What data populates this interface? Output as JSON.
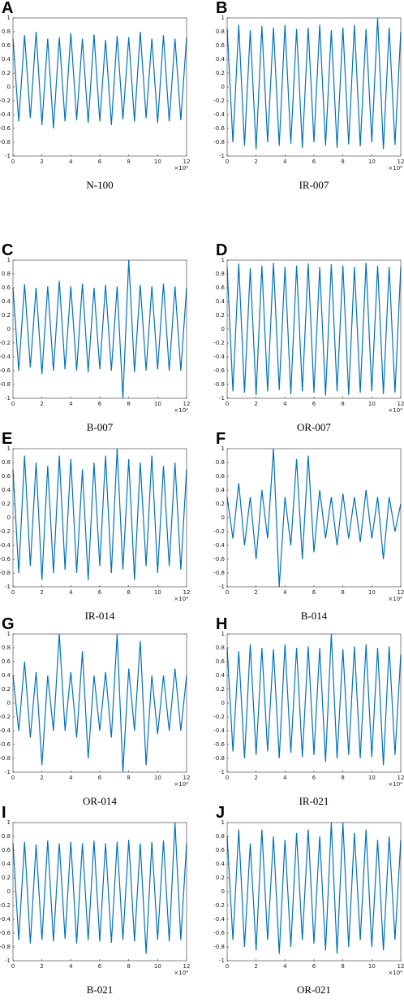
{
  "chart_data": [
    {
      "type": "line",
      "label": "A",
      "caption": "N-100",
      "color": "#0072bd",
      "x_scale_label": "×10⁴",
      "xlim": [
        0,
        12
      ],
      "ylim": [
        -1,
        1
      ],
      "xticks": [
        0,
        2,
        4,
        6,
        8,
        10,
        12
      ],
      "yticks": [
        -1,
        -0.8,
        -0.6,
        -0.4,
        -0.2,
        0,
        0.2,
        0.4,
        0.6,
        0.8,
        1
      ],
      "x": [
        0,
        0.4,
        0.8,
        1.2,
        1.6,
        2,
        2.4,
        2.8,
        3.2,
        3.6,
        4,
        4.4,
        4.8,
        5.2,
        5.6,
        6,
        6.4,
        6.8,
        7.2,
        7.6,
        8,
        8.4,
        8.8,
        9.2,
        9.6,
        10,
        10.4,
        10.8,
        11.2,
        11.6,
        12
      ],
      "values": [
        0.7,
        -0.5,
        0.75,
        -0.45,
        0.8,
        -0.55,
        0.7,
        -0.6,
        0.72,
        -0.5,
        0.78,
        -0.48,
        0.7,
        -0.52,
        0.76,
        -0.5,
        0.68,
        -0.55,
        0.74,
        -0.47,
        0.72,
        -0.5,
        0.8,
        -0.45,
        0.7,
        -0.52,
        0.75,
        -0.5,
        0.7,
        -0.48,
        0.72
      ]
    },
    {
      "type": "line",
      "label": "B",
      "caption": "IR-007",
      "color": "#0072bd",
      "x_scale_label": "×10⁴",
      "xlim": [
        0,
        12
      ],
      "ylim": [
        -1,
        1
      ],
      "xticks": [
        0,
        2,
        4,
        6,
        8,
        10,
        12
      ],
      "yticks": [
        -1,
        -0.8,
        -0.6,
        -0.4,
        -0.2,
        0,
        0.2,
        0.4,
        0.6,
        0.8,
        1
      ],
      "x": [
        0,
        0.4,
        0.8,
        1.2,
        1.6,
        2,
        2.4,
        2.8,
        3.2,
        3.6,
        4,
        4.4,
        4.8,
        5.2,
        5.6,
        6,
        6.4,
        6.8,
        7.2,
        7.6,
        8,
        8.4,
        8.8,
        9.2,
        9.6,
        10,
        10.4,
        10.8,
        11.2,
        11.6,
        12
      ],
      "values": [
        0.85,
        -0.8,
        0.9,
        -0.85,
        0.82,
        -0.9,
        0.88,
        -0.8,
        0.86,
        -0.85,
        0.9,
        -0.82,
        0.84,
        -0.88,
        0.86,
        -0.8,
        0.9,
        -0.85,
        0.82,
        -0.88,
        0.86,
        -0.83,
        0.9,
        -0.86,
        0.84,
        -0.8,
        1,
        -0.9,
        0.86,
        -0.84,
        0.8
      ]
    },
    {
      "type": "line",
      "label": "C",
      "caption": "B-007",
      "color": "#0072bd",
      "x_scale_label": "×10⁴",
      "xlim": [
        0,
        12
      ],
      "ylim": [
        -1,
        1
      ],
      "xticks": [
        0,
        2,
        4,
        6,
        8,
        10,
        12
      ],
      "yticks": [
        -1,
        -0.8,
        -0.6,
        -0.4,
        -0.2,
        0,
        0.2,
        0.4,
        0.6,
        0.8,
        1
      ],
      "x": [
        0,
        0.4,
        0.8,
        1.2,
        1.6,
        2,
        2.4,
        2.8,
        3.2,
        3.6,
        4,
        4.4,
        4.8,
        5.2,
        5.6,
        6,
        6.4,
        6.8,
        7.2,
        7.6,
        8,
        8.4,
        8.8,
        9.2,
        9.6,
        10,
        10.4,
        10.8,
        11.2,
        11.6,
        12
      ],
      "values": [
        0.6,
        -0.6,
        0.65,
        -0.55,
        0.6,
        -0.65,
        0.62,
        -0.6,
        0.7,
        -0.58,
        0.62,
        -0.6,
        0.66,
        -0.62,
        0.6,
        -0.58,
        0.64,
        -0.6,
        0.62,
        -1,
        1,
        -0.62,
        0.64,
        -0.6,
        0.62,
        -0.58,
        0.66,
        -0.6,
        0.62,
        -0.6,
        0.6
      ]
    },
    {
      "type": "line",
      "label": "D",
      "caption": "OR-007",
      "color": "#0072bd",
      "x_scale_label": "×10⁴",
      "xlim": [
        0,
        12
      ],
      "ylim": [
        -1,
        1
      ],
      "xticks": [
        0,
        2,
        4,
        6,
        8,
        10,
        12
      ],
      "yticks": [
        -1,
        -0.8,
        -0.6,
        -0.4,
        -0.2,
        0,
        0.2,
        0.4,
        0.6,
        0.8,
        1
      ],
      "x": [
        0,
        0.4,
        0.8,
        1.2,
        1.6,
        2,
        2.4,
        2.8,
        3.2,
        3.6,
        4,
        4.4,
        4.8,
        5.2,
        5.6,
        6,
        6.4,
        6.8,
        7.2,
        7.6,
        8,
        8.4,
        8.8,
        9.2,
        9.6,
        10,
        10.4,
        10.8,
        11.2,
        11.6,
        12
      ],
      "values": [
        0.9,
        -0.9,
        0.95,
        -0.92,
        0.88,
        -0.95,
        0.92,
        -0.9,
        0.96,
        -0.88,
        0.9,
        -0.94,
        0.92,
        -0.9,
        0.95,
        -0.92,
        0.9,
        -0.96,
        0.94,
        -0.9,
        0.92,
        -0.95,
        0.9,
        -0.92,
        0.96,
        -0.9,
        0.92,
        -0.94,
        0.9,
        -0.92,
        0.9
      ]
    },
    {
      "type": "line",
      "label": "E",
      "caption": "IR-014",
      "color": "#0072bd",
      "x_scale_label": "×10⁴",
      "xlim": [
        0,
        12
      ],
      "ylim": [
        -1,
        1
      ],
      "xticks": [
        0,
        2,
        4,
        6,
        8,
        10,
        12
      ],
      "yticks": [
        -1,
        -0.8,
        -0.6,
        -0.4,
        -0.2,
        0,
        0.2,
        0.4,
        0.6,
        0.8,
        1
      ],
      "x": [
        0,
        0.4,
        0.8,
        1.2,
        1.6,
        2,
        2.4,
        2.8,
        3.2,
        3.6,
        4,
        4.4,
        4.8,
        5.2,
        5.6,
        6,
        6.4,
        6.8,
        7.2,
        7.6,
        8,
        8.4,
        8.8,
        9.2,
        9.6,
        10,
        10.4,
        10.8,
        11.2,
        11.6,
        12
      ],
      "values": [
        0.7,
        -0.8,
        0.9,
        -0.7,
        0.8,
        -0.9,
        0.75,
        -0.8,
        0.9,
        -0.75,
        0.85,
        -0.8,
        0.7,
        -0.9,
        0.8,
        -0.7,
        0.9,
        -0.8,
        1,
        -0.75,
        0.85,
        -0.9,
        0.8,
        -0.7,
        0.9,
        -0.8,
        0.75,
        -0.7,
        0.8,
        -0.75,
        0.7
      ]
    },
    {
      "type": "line",
      "label": "F",
      "caption": "B-014",
      "color": "#0072bd",
      "x_scale_label": "×10⁴",
      "xlim": [
        0,
        12
      ],
      "ylim": [
        -1,
        1
      ],
      "xticks": [
        0,
        2,
        4,
        6,
        8,
        10,
        12
      ],
      "yticks": [
        -1,
        -0.8,
        -0.6,
        -0.4,
        -0.2,
        0,
        0.2,
        0.4,
        0.6,
        0.8,
        1
      ],
      "x": [
        0,
        0.4,
        0.8,
        1.2,
        1.6,
        2,
        2.4,
        2.8,
        3.2,
        3.6,
        4,
        4.4,
        4.8,
        5.2,
        5.6,
        6,
        6.4,
        6.8,
        7.2,
        7.6,
        8,
        8.4,
        8.8,
        9.2,
        9.6,
        10,
        10.4,
        10.8,
        11.2,
        11.6,
        12
      ],
      "values": [
        0.3,
        -0.3,
        0.5,
        -0.4,
        0.3,
        -0.6,
        0.4,
        -0.3,
        1,
        -1,
        0.3,
        -0.4,
        0.85,
        -0.6,
        0.9,
        -0.5,
        0.4,
        -0.3,
        0.3,
        -0.4,
        0.35,
        -0.3,
        0.3,
        -0.35,
        0.4,
        -0.3,
        0.3,
        -0.6,
        0.3,
        -0.2,
        0.2
      ]
    },
    {
      "type": "line",
      "label": "G",
      "caption": "OR-014",
      "color": "#0072bd",
      "x_scale_label": "×10⁴",
      "xlim": [
        0,
        12
      ],
      "ylim": [
        -1,
        1
      ],
      "xticks": [
        0,
        2,
        4,
        6,
        8,
        10,
        12
      ],
      "yticks": [
        -1,
        -0.8,
        -0.6,
        -0.4,
        -0.2,
        0,
        0.2,
        0.4,
        0.6,
        0.8,
        1
      ],
      "x": [
        0,
        0.4,
        0.8,
        1.2,
        1.6,
        2,
        2.4,
        2.8,
        3.2,
        3.6,
        4,
        4.4,
        4.8,
        5.2,
        5.6,
        6,
        6.4,
        6.8,
        7.2,
        7.6,
        8,
        8.4,
        8.8,
        9.2,
        9.6,
        10,
        10.4,
        10.8,
        11.2,
        11.6,
        12
      ],
      "values": [
        0.4,
        -0.4,
        0.6,
        -0.5,
        0.45,
        -0.9,
        0.4,
        -0.4,
        1,
        -0.4,
        0.45,
        -0.5,
        0.75,
        -0.8,
        0.4,
        -0.4,
        0.45,
        -0.5,
        1,
        -1,
        0.5,
        -0.4,
        0.9,
        -0.9,
        0.4,
        -0.45,
        0.4,
        -0.4,
        0.5,
        -0.4,
        0.4
      ]
    },
    {
      "type": "line",
      "label": "H",
      "caption": "IR-021",
      "color": "#0072bd",
      "x_scale_label": "×10⁴",
      "xlim": [
        0,
        12
      ],
      "ylim": [
        -1,
        1
      ],
      "xticks": [
        0,
        2,
        4,
        6,
        8,
        10,
        12
      ],
      "yticks": [
        -1,
        -0.8,
        -0.6,
        -0.4,
        -0.2,
        0,
        0.2,
        0.4,
        0.6,
        0.8,
        1
      ],
      "x": [
        0,
        0.4,
        0.8,
        1.2,
        1.6,
        2,
        2.4,
        2.8,
        3.2,
        3.6,
        4,
        4.4,
        4.8,
        5.2,
        5.6,
        6,
        6.4,
        6.8,
        7.2,
        7.6,
        8,
        8.4,
        8.8,
        9.2,
        9.6,
        10,
        10.4,
        10.8,
        11.2,
        11.6,
        12
      ],
      "values": [
        0.8,
        -0.7,
        0.75,
        -0.8,
        0.85,
        -0.75,
        0.8,
        -0.7,
        0.78,
        -0.8,
        0.85,
        -0.72,
        0.8,
        -0.78,
        0.82,
        -0.75,
        0.8,
        -0.85,
        1,
        -0.8,
        0.78,
        -0.75,
        0.82,
        -0.8,
        0.85,
        -0.78,
        0.8,
        -0.9,
        0.82,
        -0.75,
        0.7
      ]
    },
    {
      "type": "line",
      "label": "I",
      "caption": "B-021",
      "color": "#0072bd",
      "x_scale_label": "×10⁴",
      "xlim": [
        0,
        12
      ],
      "ylim": [
        -1,
        1
      ],
      "xticks": [
        0,
        2,
        4,
        6,
        8,
        10,
        12
      ],
      "yticks": [
        -1,
        -0.8,
        -0.6,
        -0.4,
        -0.2,
        0,
        0.2,
        0.4,
        0.6,
        0.8,
        1
      ],
      "x": [
        0,
        0.4,
        0.8,
        1.2,
        1.6,
        2,
        2.4,
        2.8,
        3.2,
        3.6,
        4,
        4.4,
        4.8,
        5.2,
        5.6,
        6,
        6.4,
        6.8,
        7.2,
        7.6,
        8,
        8.4,
        8.8,
        9.2,
        9.6,
        10,
        10.4,
        10.8,
        11.2,
        11.6,
        12
      ],
      "values": [
        0.7,
        -0.7,
        0.72,
        -0.75,
        0.68,
        -0.7,
        0.74,
        -0.72,
        0.7,
        -0.68,
        0.72,
        -0.75,
        0.7,
        -0.7,
        0.74,
        -0.72,
        0.7,
        -0.74,
        0.72,
        -0.7,
        0.75,
        -0.72,
        0.7,
        -0.9,
        0.72,
        -0.7,
        0.74,
        -0.72,
        1,
        -0.7,
        0.7
      ]
    },
    {
      "type": "line",
      "label": "J",
      "caption": "OR-021",
      "color": "#0072bd",
      "x_scale_label": "×10⁴",
      "xlim": [
        0,
        12
      ],
      "ylim": [
        -1,
        1
      ],
      "xticks": [
        0,
        2,
        4,
        6,
        8,
        10,
        12
      ],
      "yticks": [
        -1,
        -0.8,
        -0.6,
        -0.4,
        -0.2,
        0,
        0.2,
        0.4,
        0.6,
        0.8,
        1
      ],
      "x": [
        0,
        0.4,
        0.8,
        1.2,
        1.6,
        2,
        2.4,
        2.8,
        3.2,
        3.6,
        4,
        4.4,
        4.8,
        5.2,
        5.6,
        6,
        6.4,
        6.8,
        7.2,
        7.6,
        8,
        8.4,
        8.8,
        9.2,
        9.6,
        10,
        10.4,
        10.8,
        11.2,
        11.6,
        12
      ],
      "values": [
        0.8,
        -0.7,
        0.9,
        -0.8,
        0.7,
        -0.85,
        0.9,
        -0.7,
        0.8,
        -0.9,
        0.75,
        -0.8,
        0.85,
        -0.7,
        0.9,
        -0.75,
        0.8,
        -0.85,
        1,
        -0.9,
        1,
        -0.8,
        0.85,
        -0.7,
        0.9,
        -0.8,
        0.75,
        -0.85,
        0.8,
        -0.7,
        0.75
      ]
    }
  ]
}
